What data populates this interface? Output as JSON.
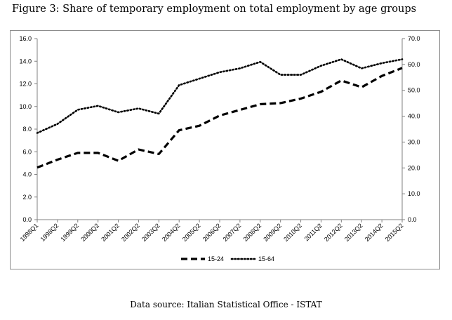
{
  "figure_title": "Figure 3: Share of temporary employment on total employment by age groups",
  "source": "Data source: Italian Statistical Office - ISTAT",
  "chart_data": {
    "type": "line",
    "title": "",
    "x": [
      "1998Q1",
      "1998Q2",
      "1999Q2",
      "2000Q2",
      "2001Q2",
      "2002Q2",
      "2003Q2",
      "2004Q2",
      "2005Q2",
      "2006Q2",
      "2007Q2",
      "2008Q2",
      "2009Q2",
      "2010Q2",
      "2011Q2",
      "2012Q2",
      "2013Q2",
      "2014Q2",
      "2015Q2"
    ],
    "left_axis": {
      "ylim": [
        0,
        16
      ],
      "ticks": [
        "0.0",
        "2.0",
        "4.0",
        "6.0",
        "8.0",
        "10.0",
        "12.0",
        "14.0",
        "16.0"
      ]
    },
    "right_axis": {
      "ylim": [
        0,
        70
      ],
      "ticks": [
        "0.0",
        "10.0",
        "20.0",
        "30.0",
        "40.0",
        "50.0",
        "60.0",
        "70.0"
      ]
    },
    "series": [
      {
        "name": "15-24",
        "axis": "left",
        "style": "dashed",
        "color": "#000000",
        "values": [
          4.6,
          5.3,
          5.9,
          5.9,
          5.2,
          6.2,
          5.8,
          7.9,
          8.3,
          9.2,
          9.7,
          10.2,
          10.3,
          10.7,
          11.3,
          12.3,
          11.7,
          12.7,
          13.4
        ]
      },
      {
        "name": "15-64",
        "axis": "right",
        "style": "dotted",
        "color": "#000000",
        "values": [
          33.5,
          37.0,
          42.5,
          44.0,
          41.5,
          43.0,
          41.0,
          52.0,
          54.5,
          57.0,
          58.5,
          61.0,
          56.0,
          56.0,
          59.5,
          62.0,
          58.5,
          60.5,
          62.0
        ]
      }
    ],
    "grid": false,
    "legend": "bottom"
  }
}
